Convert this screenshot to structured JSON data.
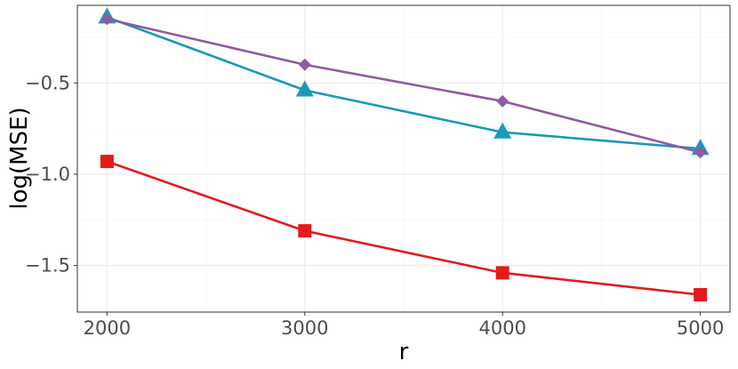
{
  "chart_data": {
    "type": "line",
    "xlabel": "r",
    "ylabel": "log(MSE)",
    "x": [
      2000,
      3000,
      4000,
      5000
    ],
    "xlim": [
      1850,
      5150
    ],
    "ylim": [
      -1.755,
      -0.075
    ],
    "x_ticks": [
      2000,
      3000,
      4000,
      5000
    ],
    "x_tick_labels": [
      "2000",
      "3000",
      "4000",
      "5000"
    ],
    "x_minor": [
      2500,
      3500,
      4500
    ],
    "y_ticks": [
      -0.5,
      -1.0,
      -1.5
    ],
    "y_tick_labels": [
      "−0.5",
      "−1.0",
      "−1.5"
    ],
    "y_minor": [
      -0.25,
      -0.75,
      -1.25,
      -1.75
    ],
    "grid": true,
    "legend": "none",
    "series": [
      {
        "values": [
          -0.93,
          -1.31,
          -1.54,
          -1.66
        ],
        "color": "#E41A1C",
        "marker": "square"
      },
      {
        "values": [
          -0.14,
          -0.54,
          -0.77,
          -0.86
        ],
        "color": "#1A99B8",
        "marker": "triangle"
      },
      {
        "values": [
          -0.15,
          -0.4,
          -0.6,
          -0.88
        ],
        "color": "#8F5BA3",
        "marker": "diamond"
      }
    ]
  }
}
